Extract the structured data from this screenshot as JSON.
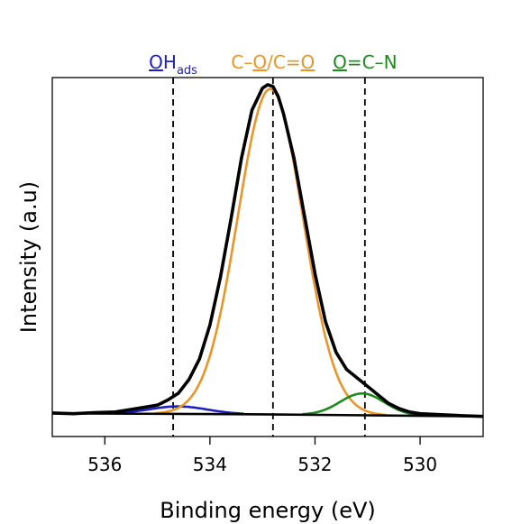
{
  "chart_data": {
    "type": "line",
    "title": "",
    "xlabel": "Binding energy (eV)",
    "ylabel": "Intensity (a.u)",
    "x_reversed": true,
    "xlim": [
      537.0,
      528.8
    ],
    "ylim": [
      0,
      1
    ],
    "x_ticks": [
      536,
      534,
      532,
      530
    ],
    "y_ticks": [],
    "grid": false,
    "colors": {
      "frame": "#000000",
      "envelope": "#000000",
      "component_OH": "#1f1fbf",
      "component_CO": "#e8962a",
      "component_OCN": "#1e8a1e",
      "label_OH": "#1f1fbf",
      "label_CO": "#e8962a",
      "label_OCN": "#1e8a1e"
    },
    "reference_lines": [
      {
        "x": 534.7
      },
      {
        "x": 532.8
      },
      {
        "x": 531.05
      }
    ],
    "annotations": [
      {
        "id": "oh",
        "x": 534.7,
        "underline_char": "O",
        "rest": "H",
        "subscript": "ads"
      },
      {
        "id": "co",
        "x": 532.8,
        "parts": [
          "C–",
          "O",
          "/C=",
          "O"
        ],
        "underlined_parts": [
          1,
          3
        ]
      },
      {
        "id": "ocn",
        "x": 531.05,
        "underline_char": "O",
        "rest": "=C–N"
      }
    ],
    "baseline": [
      {
        "x": 537.0,
        "y": 0.031
      },
      {
        "x": 533.0,
        "y": 0.028
      },
      {
        "x": 528.8,
        "y": 0.022
      }
    ],
    "components": [
      {
        "id": "OH",
        "center": 534.6,
        "height": 0.022,
        "sigma": 0.55
      },
      {
        "id": "CO",
        "center": 532.85,
        "height": 0.955,
        "sigma": 0.62
      },
      {
        "id": "OCN",
        "center": 531.1,
        "height": 0.064,
        "sigma": 0.42
      }
    ],
    "series": [
      {
        "id": "envelope",
        "x": [
          537.0,
          536.6,
          536.2,
          535.8,
          535.4,
          535.0,
          534.8,
          534.6,
          534.4,
          534.2,
          534.0,
          533.8,
          533.6,
          533.4,
          533.2,
          533.0,
          532.9,
          532.8,
          532.7,
          532.6,
          532.4,
          532.2,
          532.0,
          531.8,
          531.6,
          531.4,
          531.2,
          531.0,
          530.8,
          530.6,
          530.4,
          530.2,
          530.0,
          529.6,
          529.2,
          528.8
        ],
        "y": [
          0.032,
          0.03,
          0.033,
          0.035,
          0.045,
          0.055,
          0.07,
          0.09,
          0.13,
          0.19,
          0.29,
          0.43,
          0.6,
          0.78,
          0.92,
          0.985,
          0.995,
          0.99,
          0.96,
          0.91,
          0.78,
          0.61,
          0.44,
          0.3,
          0.21,
          0.16,
          0.135,
          0.11,
          0.085,
          0.06,
          0.045,
          0.035,
          0.03,
          0.027,
          0.024,
          0.022
        ]
      }
    ]
  }
}
